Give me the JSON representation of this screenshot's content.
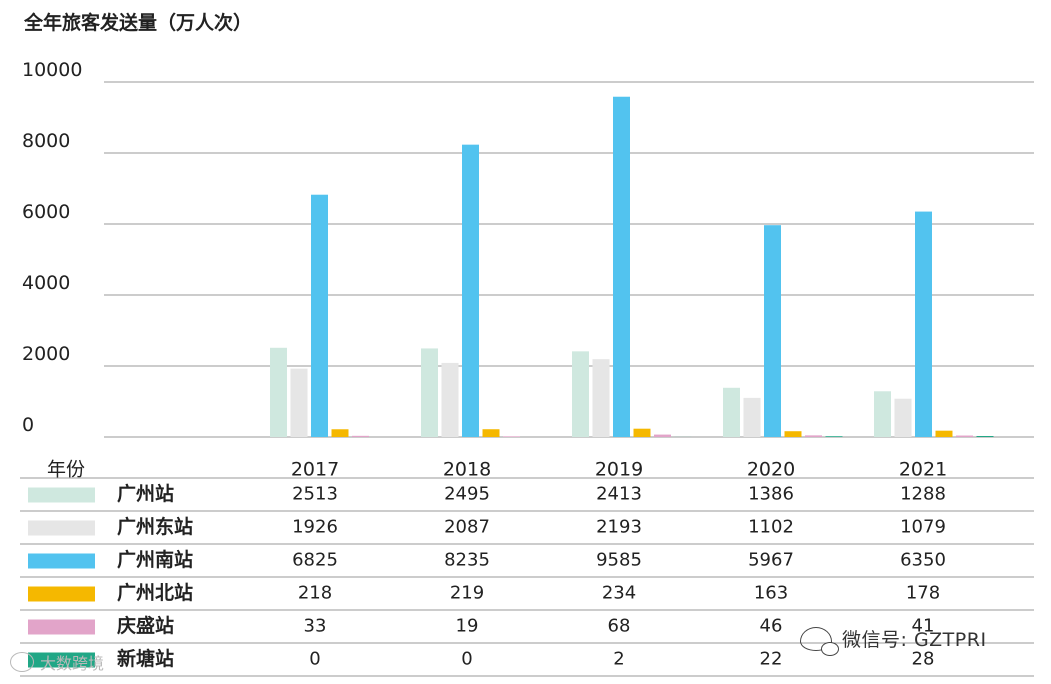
{
  "chart_data": {
    "type": "bar",
    "title": "全年旅客发送量（万人次）",
    "row_header": "年份",
    "categories": [
      "2017",
      "2018",
      "2019",
      "2020",
      "2021"
    ],
    "yticks": [
      "10000",
      "8000",
      "6000",
      "4000",
      "2000",
      "0"
    ],
    "ylim": [
      0,
      10000
    ],
    "grid": true,
    "legend": "table-below",
    "series": [
      {
        "name": "广州站",
        "color": "#cfe8df",
        "values": [
          2513,
          2495,
          2413,
          1386,
          1288
        ]
      },
      {
        "name": "广州东站",
        "color": "#e6e6e6",
        "values": [
          1926,
          2087,
          2193,
          1102,
          1079
        ]
      },
      {
        "name": "广州南站",
        "color": "#52c3ef",
        "values": [
          6825,
          8235,
          9585,
          5967,
          6350
        ]
      },
      {
        "name": "广州北站",
        "color": "#f5b800",
        "values": [
          218,
          219,
          234,
          163,
          178
        ]
      },
      {
        "name": "庆盛站",
        "color": "#e2a4c9",
        "values": [
          33,
          19,
          68,
          46,
          41
        ]
      },
      {
        "name": "新塘站",
        "color": "#21a786",
        "values": [
          0,
          0,
          2,
          22,
          28
        ]
      }
    ]
  },
  "watermarks": {
    "wechat": "微信号: GZTPRI",
    "small": "大数跨境"
  },
  "icons": {
    "wechat": "wechat-icon",
    "small": "brand-icon"
  }
}
